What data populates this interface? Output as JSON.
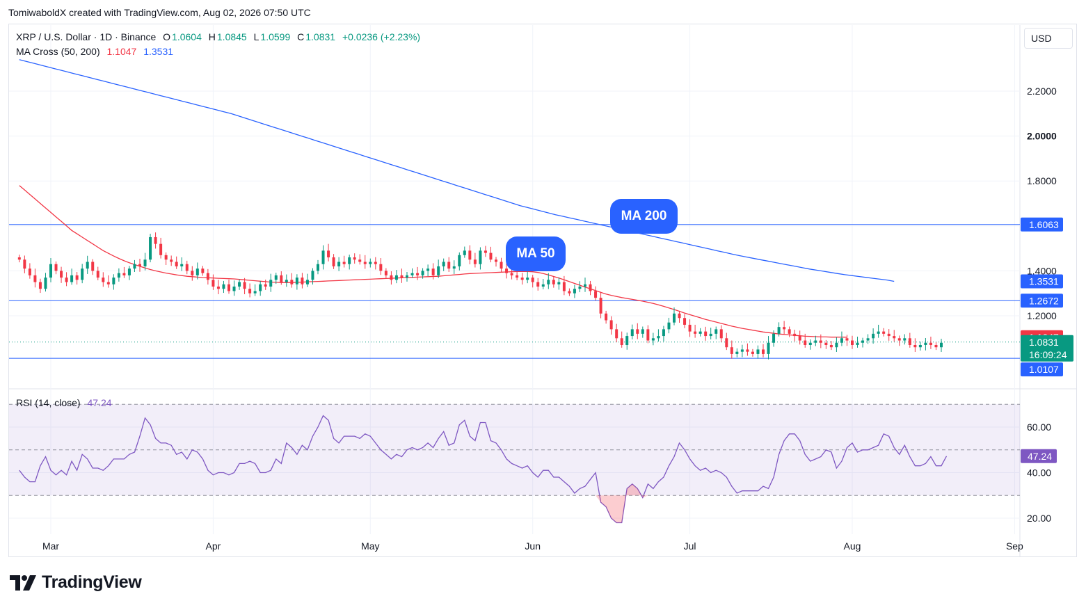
{
  "attribution": "TomiwaboldX created with TradingView.com, Aug 02, 2026 07:50 UTC",
  "symbol": "XRP / U.S. Dollar · 1D · Binance",
  "ohlc": {
    "o_label": "O",
    "o": "1.0604",
    "h_label": "H",
    "h": "1.0845",
    "l_label": "L",
    "l": "1.0599",
    "c_label": "C",
    "c": "1.0831",
    "change": "+0.0236 (+2.23%)"
  },
  "ma_indicator": {
    "label": "MA Cross (50, 200)",
    "ma50_value": "1.1047",
    "ma200_value": "1.3531"
  },
  "rsi_indicator": {
    "label": "RSI (14, close)",
    "value": "47.24"
  },
  "currency_button": "USD",
  "annotations": {
    "ma200": "MA 200",
    "ma50": "MA 50"
  },
  "branding": {
    "wordmark": "TradingView"
  },
  "colors": {
    "up": "#089981",
    "down": "#f23645",
    "ma50": "#f23645",
    "ma200": "#2962ff",
    "rsi": "#7e57c2",
    "hline": "#2962ff"
  },
  "chart_data": [
    {
      "type": "candlestick",
      "ylim": [
        0.94,
        2.36
      ],
      "y_ticks": [
        "1.2000",
        "1.4000",
        "1.8000",
        "2.0000",
        "2.2000"
      ],
      "x_ticks": [
        "Mar",
        "Apr",
        "May",
        "Jun",
        "Jul",
        "Aug",
        "Sep"
      ],
      "x_tick_dates": [
        "2026-03-01",
        "2026-04-01",
        "2026-05-01",
        "2026-06-01",
        "2026-07-01",
        "2026-08-01",
        "2026-09-01"
      ],
      "first_date": "2026-02-23",
      "horizontal_lines": [
        {
          "value": 1.6063,
          "label": "1.6063"
        },
        {
          "value": 1.2672,
          "label": "1.2672"
        },
        {
          "value": 1.0107,
          "label": "1.0107"
        }
      ],
      "price_labels": {
        "ma200": "1.3531",
        "ma50": "1.1047",
        "last_price": "1.0831",
        "countdown": "16:09:24"
      },
      "close": [
        1.45,
        1.41,
        1.38,
        1.35,
        1.32,
        1.37,
        1.43,
        1.4,
        1.37,
        1.35,
        1.38,
        1.36,
        1.41,
        1.44,
        1.4,
        1.37,
        1.35,
        1.34,
        1.37,
        1.39,
        1.38,
        1.41,
        1.43,
        1.42,
        1.45,
        1.55,
        1.52,
        1.47,
        1.45,
        1.44,
        1.42,
        1.43,
        1.4,
        1.38,
        1.41,
        1.39,
        1.36,
        1.33,
        1.32,
        1.34,
        1.31,
        1.33,
        1.35,
        1.32,
        1.3,
        1.31,
        1.34,
        1.33,
        1.36,
        1.38,
        1.35,
        1.36,
        1.34,
        1.37,
        1.34,
        1.36,
        1.4,
        1.43,
        1.49,
        1.46,
        1.42,
        1.44,
        1.43,
        1.46,
        1.45,
        1.44,
        1.43,
        1.44,
        1.43,
        1.4,
        1.38,
        1.36,
        1.38,
        1.37,
        1.38,
        1.39,
        1.38,
        1.4,
        1.41,
        1.38,
        1.42,
        1.44,
        1.41,
        1.42,
        1.47,
        1.49,
        1.45,
        1.43,
        1.49,
        1.48,
        1.45,
        1.44,
        1.41,
        1.39,
        1.38,
        1.37,
        1.36,
        1.37,
        1.35,
        1.33,
        1.34,
        1.36,
        1.34,
        1.35,
        1.31,
        1.3,
        1.32,
        1.33,
        1.34,
        1.31,
        1.28,
        1.21,
        1.18,
        1.14,
        1.1,
        1.07,
        1.11,
        1.14,
        1.12,
        1.14,
        1.09,
        1.1,
        1.11,
        1.14,
        1.17,
        1.21,
        1.19,
        1.16,
        1.13,
        1.12,
        1.13,
        1.11,
        1.12,
        1.14,
        1.1,
        1.06,
        1.03,
        1.04,
        1.05,
        1.04,
        1.03,
        1.05,
        1.03,
        1.08,
        1.12,
        1.15,
        1.14,
        1.12,
        1.11,
        1.09,
        1.07,
        1.08,
        1.09,
        1.08,
        1.07,
        1.06,
        1.08,
        1.1,
        1.09,
        1.07,
        1.08,
        1.09,
        1.1,
        1.12,
        1.13,
        1.12,
        1.11,
        1.1,
        1.09,
        1.1,
        1.07,
        1.06,
        1.07,
        1.08,
        1.07,
        1.06,
        1.08
      ],
      "ma50": [
        1.78,
        1.76,
        1.74,
        1.72,
        1.7,
        1.68,
        1.66,
        1.64,
        1.62,
        1.6,
        1.58,
        1.565,
        1.55,
        1.535,
        1.52,
        1.505,
        1.49,
        1.478,
        1.466,
        1.455,
        1.445,
        1.436,
        1.428,
        1.42,
        1.413,
        1.406,
        1.4,
        1.395,
        1.39,
        1.386,
        1.382,
        1.379,
        1.376,
        1.374,
        1.372,
        1.37,
        1.369,
        1.368,
        1.367,
        1.366,
        1.365,
        1.364,
        1.362,
        1.36,
        1.358,
        1.356,
        1.354,
        1.352,
        1.35,
        1.349,
        1.348,
        1.348,
        1.348,
        1.349,
        1.35,
        1.351,
        1.352,
        1.353,
        1.354,
        1.355,
        1.356,
        1.357,
        1.358,
        1.359,
        1.36,
        1.361,
        1.362,
        1.363,
        1.364,
        1.365,
        1.366,
        1.367,
        1.368,
        1.369,
        1.37,
        1.371,
        1.372,
        1.373,
        1.374,
        1.375,
        1.376,
        1.378,
        1.38,
        1.382,
        1.384,
        1.386,
        1.388,
        1.389,
        1.39,
        1.391,
        1.392,
        1.393,
        1.394,
        1.395,
        1.396,
        1.397,
        1.397,
        1.397,
        1.396,
        1.393,
        1.388,
        1.382,
        1.375,
        1.368,
        1.36,
        1.352,
        1.344,
        1.336,
        1.328,
        1.32,
        1.312,
        1.304,
        1.297,
        1.291,
        1.286,
        1.281,
        1.277,
        1.273,
        1.269,
        1.265,
        1.26,
        1.255,
        1.249,
        1.242,
        1.235,
        1.228,
        1.22,
        1.212,
        1.205,
        1.198,
        1.191,
        1.184,
        1.178,
        1.172,
        1.166,
        1.16,
        1.154,
        1.149,
        1.144,
        1.14,
        1.136,
        1.132,
        1.128,
        1.125,
        1.122,
        1.119,
        1.117,
        1.115,
        1.113,
        1.111,
        1.109,
        1.108,
        1.107,
        1.106,
        1.106,
        1.105,
        1.105,
        1.105,
        1.1047
      ],
      "ma200": [
        2.34,
        2.332,
        2.324,
        2.316,
        2.308,
        2.3,
        2.292,
        2.284,
        2.276,
        2.268,
        2.26,
        2.252,
        2.244,
        2.236,
        2.228,
        2.22,
        2.212,
        2.204,
        2.196,
        2.188,
        2.18,
        2.172,
        2.164,
        2.156,
        2.148,
        2.14,
        2.132,
        2.124,
        2.116,
        2.108,
        2.1,
        2.09,
        2.08,
        2.07,
        2.06,
        2.05,
        2.04,
        2.03,
        2.02,
        2.01,
        2.0,
        1.99,
        1.98,
        1.97,
        1.96,
        1.95,
        1.94,
        1.93,
        1.92,
        1.91,
        1.9,
        1.89,
        1.88,
        1.87,
        1.86,
        1.85,
        1.84,
        1.83,
        1.82,
        1.81,
        1.8,
        1.79,
        1.78,
        1.77,
        1.76,
        1.75,
        1.74,
        1.73,
        1.72,
        1.71,
        1.7,
        1.69,
        1.682,
        1.674,
        1.666,
        1.658,
        1.65,
        1.643,
        1.636,
        1.629,
        1.622,
        1.615,
        1.608,
        1.601,
        1.594,
        1.587,
        1.58,
        1.573,
        1.566,
        1.559,
        1.552,
        1.545,
        1.538,
        1.531,
        1.524,
        1.517,
        1.51,
        1.503,
        1.496,
        1.489,
        1.482,
        1.475,
        1.468,
        1.462,
        1.456,
        1.45,
        1.444,
        1.438,
        1.432,
        1.426,
        1.42,
        1.414,
        1.408,
        1.403,
        1.398,
        1.393,
        1.388,
        1.383,
        1.379,
        1.375,
        1.371,
        1.367,
        1.363,
        1.359,
        1.3531
      ],
      "ma200_start_index": 0,
      "ma200_end_index": 167
    },
    {
      "type": "line",
      "name": "RSI",
      "ylim": [
        13,
        74
      ],
      "y_ticks": [
        "20.00",
        "40.00",
        "60.00"
      ],
      "bands": [
        70,
        50,
        30
      ],
      "values": [
        41,
        38,
        36,
        36,
        43,
        47,
        41,
        39,
        41,
        39,
        45,
        41,
        48,
        46,
        42,
        42,
        41,
        43,
        46,
        46,
        46,
        48,
        49,
        56,
        64,
        61,
        55,
        53,
        53,
        52,
        48,
        49,
        46,
        50,
        49,
        46,
        41,
        39,
        40,
        40,
        39,
        40,
        44,
        44,
        45,
        44,
        40,
        40,
        41,
        46,
        44,
        53,
        51,
        48,
        52,
        50,
        56,
        60,
        65,
        63,
        55,
        53,
        56,
        56,
        56,
        55,
        57,
        56,
        53,
        50,
        48,
        46,
        48,
        47,
        50,
        51,
        50,
        51,
        53,
        51,
        55,
        58,
        52,
        53,
        61,
        63,
        56,
        54,
        62,
        62,
        54,
        53,
        50,
        46,
        44,
        43,
        42,
        43,
        40,
        38,
        41,
        41,
        38,
        38,
        36,
        34,
        31,
        33,
        34,
        37,
        40,
        27,
        25,
        20,
        18,
        18,
        33,
        35,
        33,
        29,
        35,
        33,
        36,
        38,
        43,
        47,
        53,
        50,
        46,
        43,
        41,
        42,
        40,
        41,
        40,
        38,
        34,
        31,
        32,
        32,
        32,
        32,
        34,
        33,
        38,
        48,
        54,
        57,
        57,
        54,
        48,
        45,
        46,
        47,
        50,
        49,
        42,
        45,
        51,
        53,
        49,
        50,
        50,
        51,
        52,
        57,
        56,
        51,
        48,
        52,
        47,
        43,
        43,
        44,
        47,
        43,
        43,
        47.24
      ]
    }
  ]
}
